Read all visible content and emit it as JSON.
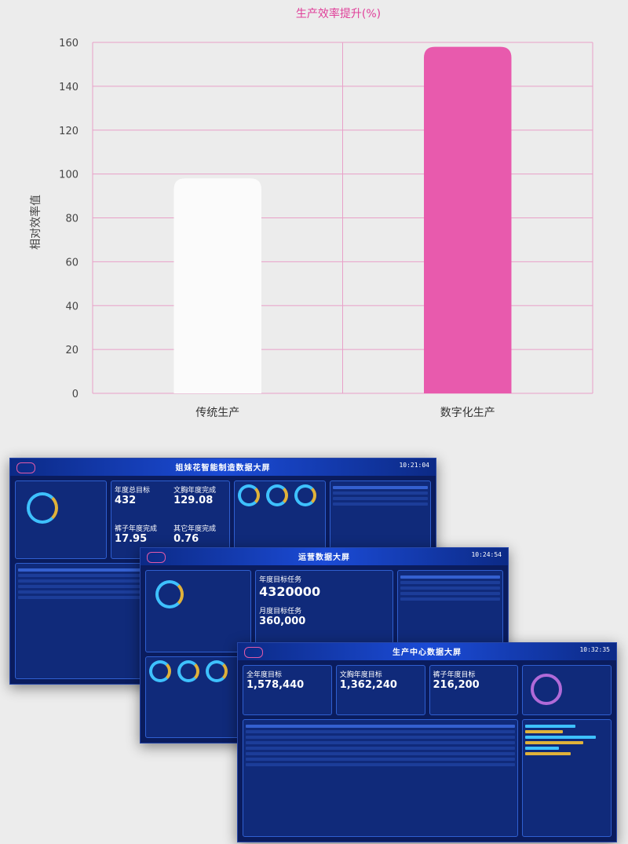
{
  "chart_data": {
    "type": "bar",
    "title": "生产效率提升(%)",
    "ylabel": "相对效率值",
    "xlabel": "",
    "categories": [
      "传统生产",
      "数字化生产"
    ],
    "values": [
      98,
      158
    ],
    "bar_colors": [
      "#fbfbfb",
      "#e85aad"
    ],
    "ylim": [
      0,
      160
    ],
    "yticks": [
      0,
      20,
      40,
      60,
      80,
      100,
      120,
      140,
      160
    ],
    "grid": true,
    "gridColor": "#e8a0c8",
    "titleColor": "#e0409a"
  },
  "screenshots": {
    "dash1": {
      "title": "姐妹花智能制造数据大屏",
      "clock": "10:21:04",
      "kpis": [
        {
          "label": "年度总目标",
          "value": "432"
        },
        {
          "label": "文胸年度完成",
          "value": "129.08"
        },
        {
          "label": "裤子年度完成",
          "value": "17.95"
        },
        {
          "label": "其它年度完成",
          "value": "0.76"
        }
      ]
    },
    "dash2": {
      "title": "运营数据大屏",
      "clock": "10:24:54",
      "kpis": [
        {
          "label": "年度目标任务",
          "value": "4320000"
        },
        {
          "label": "月度目标任务",
          "value": "360,000"
        }
      ]
    },
    "dash3": {
      "title": "生产中心数据大屏",
      "clock": "10:32:35",
      "kpis": [
        {
          "label": "全年度目标",
          "value": "1,578,440"
        },
        {
          "label": "文胸年度目标",
          "value": "1,362,240"
        },
        {
          "label": "裤子年度目标",
          "value": "216,200"
        }
      ]
    }
  }
}
